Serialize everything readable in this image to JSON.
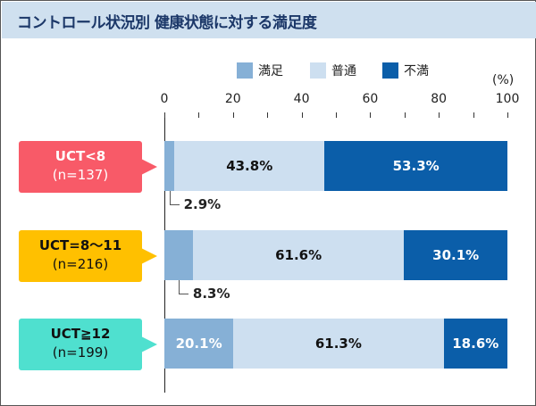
{
  "title": "コントロール状況別 健康状態に対する満足度",
  "colors": {
    "satisfied": "#86b0d6",
    "neutral": "#cddff0",
    "dissatisfied": "#0b5ea9"
  },
  "chart_data": {
    "type": "bar",
    "stacked": true,
    "orientation": "horizontal",
    "title": "コントロール状況別 健康状態に対する満足度",
    "unit_label": "(%)",
    "xlim": [
      0,
      100
    ],
    "ticks": [
      "0",
      "20",
      "40",
      "60",
      "80",
      "100"
    ],
    "legend": [
      "満足",
      "普通",
      "不満"
    ],
    "legend_position": "top",
    "categories": [
      {
        "label": "UCT<8",
        "n": "(n=137)",
        "color": "#f85a68",
        "text_color": "#ffffff"
      },
      {
        "label": "UCT=8〜11",
        "n": "(n=216)",
        "color": "#ffc000",
        "text_color": "#111111"
      },
      {
        "label": "UCT≧12",
        "n": "(n=199)",
        "color": "#4fe0cf",
        "text_color": "#111111"
      }
    ],
    "series": [
      {
        "name": "満足",
        "values": [
          2.9,
          8.3,
          20.1
        ],
        "labels": [
          "2.9%",
          "8.3%",
          "20.1%"
        ]
      },
      {
        "name": "普通",
        "values": [
          43.8,
          61.6,
          61.3
        ],
        "labels": [
          "43.8%",
          "61.6%",
          "61.3%"
        ]
      },
      {
        "name": "不満",
        "values": [
          53.3,
          30.1,
          18.6
        ],
        "labels": [
          "53.3%",
          "30.1%",
          "18.6%"
        ]
      }
    ]
  }
}
